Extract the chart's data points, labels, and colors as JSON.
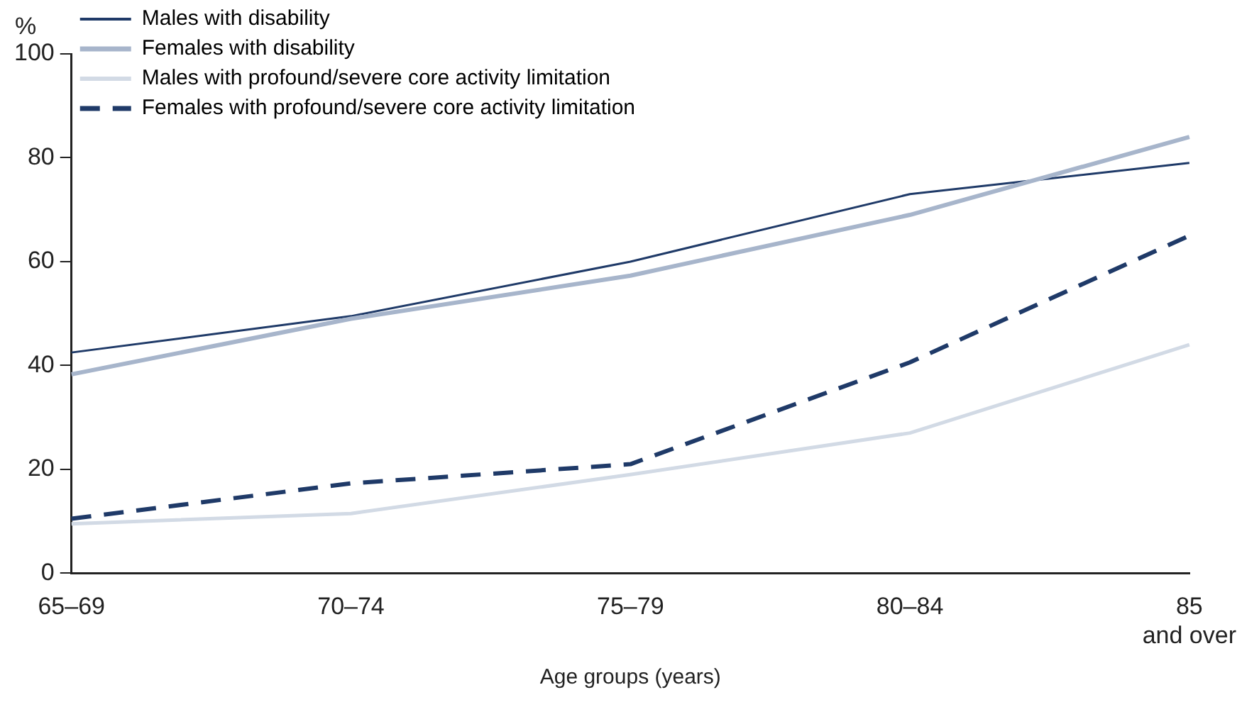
{
  "chart_data": {
    "type": "line",
    "ylabel": "%",
    "xlabel": "Age groups (years)",
    "categories": [
      "65–69",
      "70–74",
      "75–79",
      "80–84",
      "85\nand over"
    ],
    "ylim": [
      0,
      100
    ],
    "yticks": [
      0,
      20,
      40,
      60,
      80,
      100
    ],
    "grid": false,
    "legend": "top left",
    "marker": "none",
    "series": [
      {
        "name": "Males with disability",
        "color": "#1f3a68",
        "values": [
          42.5,
          49.5,
          60,
          73,
          79
        ],
        "line_style": "solid"
      },
      {
        "name": "Females with disability",
        "color": "#a7b5cb",
        "values": [
          38.3,
          49,
          57.3,
          69,
          84
        ],
        "line_style": "solid"
      },
      {
        "name": "Males with profound/severe core activity limitation",
        "color": "#d2dae5",
        "values": [
          9.5,
          11.5,
          19,
          27,
          44
        ],
        "line_style": "solid"
      },
      {
        "name": "Females with profound/severe core activity limitation",
        "color": "#1f3a68",
        "values": [
          10.5,
          17.3,
          21,
          40.6,
          65
        ],
        "line_style": "dashed"
      }
    ]
  }
}
